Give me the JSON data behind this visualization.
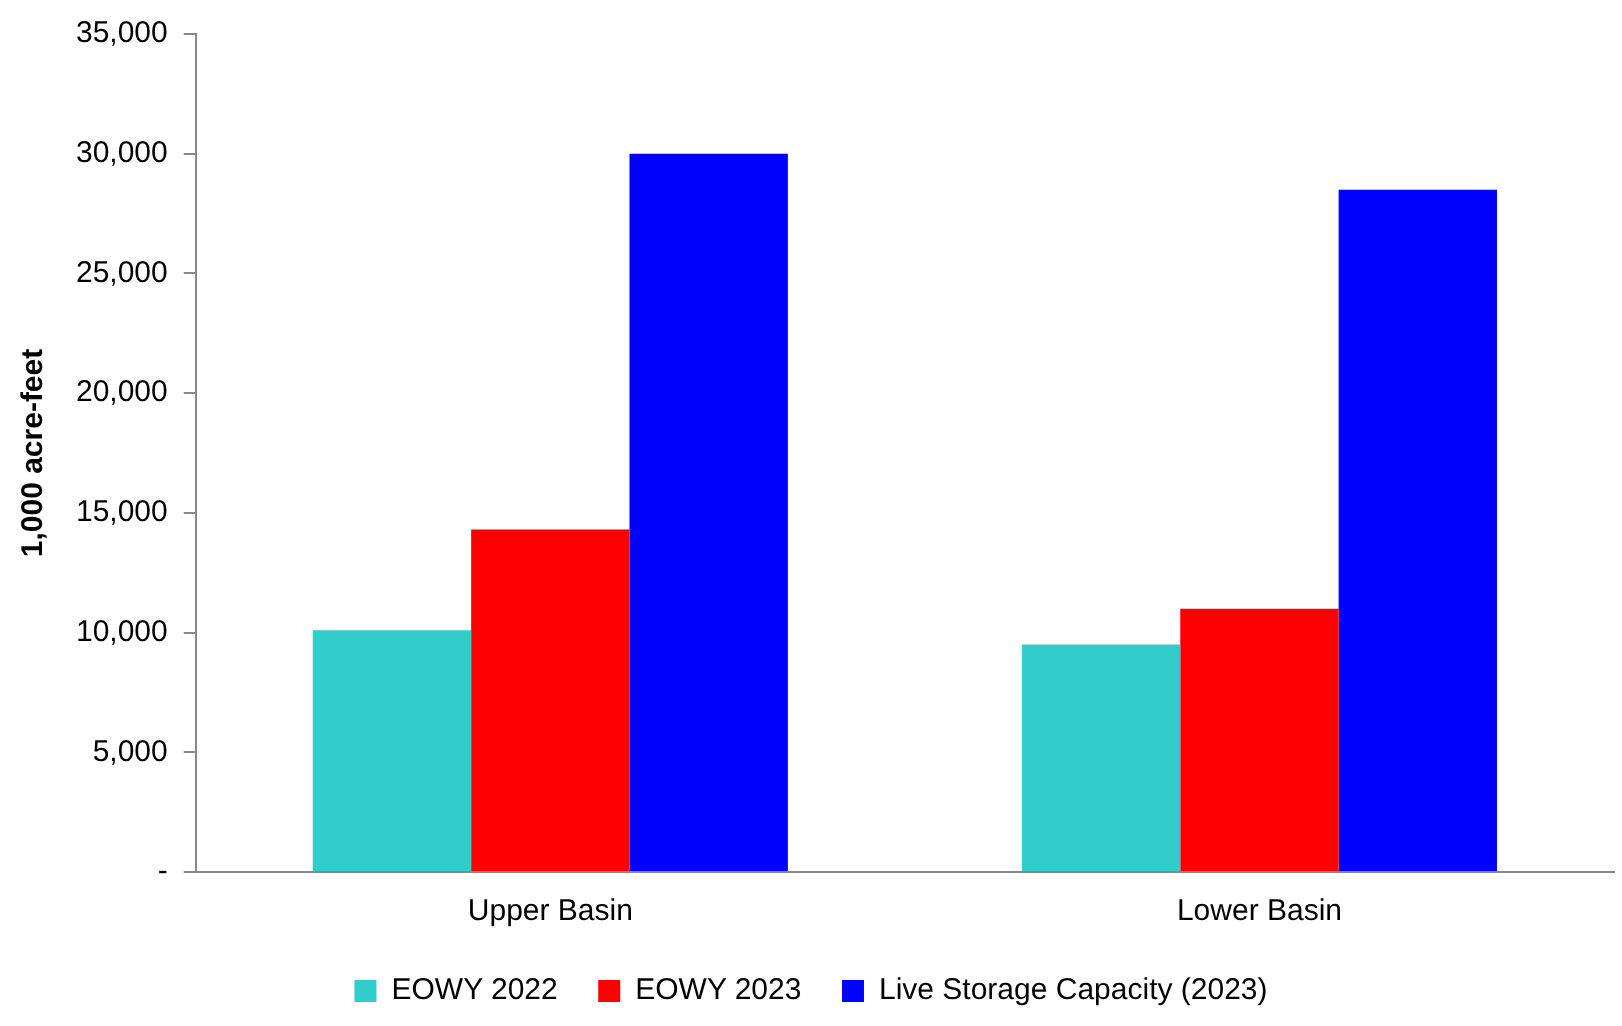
{
  "chart_data": {
    "type": "bar",
    "ylabel": "1,000 acre-feet",
    "categories": [
      "Upper Basin",
      "Lower Basin"
    ],
    "series": [
      {
        "name": "EOWY 2022",
        "color": "#33cccc",
        "values": [
          10100,
          9500
        ]
      },
      {
        "name": "EOWY 2023",
        "color": "#ff0000",
        "values": [
          14300,
          11000
        ]
      },
      {
        "name": "Live Storage Capacity (2023)",
        "color": "#0000ff",
        "values": [
          30000,
          28500
        ]
      }
    ],
    "ylim": [
      0,
      35000
    ],
    "yticks": [
      {
        "value": 0,
        "label": "-"
      },
      {
        "value": 5000,
        "label": "5,000"
      },
      {
        "value": 10000,
        "label": "10,000"
      },
      {
        "value": 15000,
        "label": "15,000"
      },
      {
        "value": 20000,
        "label": "20,000"
      },
      {
        "value": 25000,
        "label": "25,000"
      },
      {
        "value": 30000,
        "label": "30,000"
      },
      {
        "value": 35000,
        "label": "35,000"
      }
    ],
    "grid": false,
    "legend": "bottom"
  }
}
